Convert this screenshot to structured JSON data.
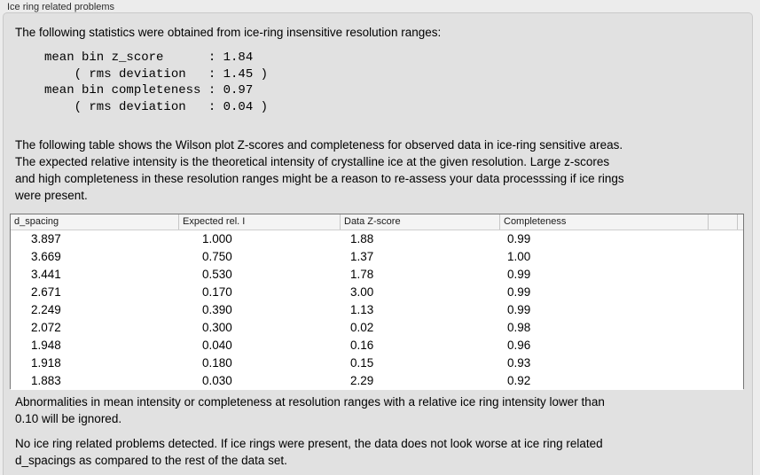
{
  "panel": {
    "title": "Ice ring related problems"
  },
  "intro_text": "The following statistics were obtained from ice-ring insensitive resolution ranges:",
  "stats_block": "mean bin z_score      : 1.84\n    ( rms deviation   : 1.45 )\nmean bin completeness : 0.97\n    ( rms deviation   : 0.04 )",
  "stats": {
    "mean_bin_z_score": "1.84",
    "z_score_rms_deviation": "1.45",
    "mean_bin_completeness": "0.97",
    "completeness_rms_deviation": "0.04"
  },
  "table_description": "The following table shows the Wilson plot Z-scores and completeness for observed data in ice-ring sensitive areas.\nThe expected relative intensity is the theoretical intensity of crystalline ice at the given resolution. Large z-scores\nand high completeness in these resolution ranges might be a reason to re-assess your data processsing if ice rings\nwere present.",
  "table": {
    "columns": [
      "d_spacing",
      "Expected rel. I",
      "Data Z-score",
      "Completeness"
    ],
    "rows": [
      [
        "3.897",
        "1.000",
        "1.88",
        "0.99"
      ],
      [
        "3.669",
        "0.750",
        "1.37",
        "1.00"
      ],
      [
        "3.441",
        "0.530",
        "1.78",
        "0.99"
      ],
      [
        "2.671",
        "0.170",
        "3.00",
        "0.99"
      ],
      [
        "2.249",
        "0.390",
        "1.13",
        "0.99"
      ],
      [
        "2.072",
        "0.300",
        "0.02",
        "0.98"
      ],
      [
        "1.948",
        "0.040",
        "0.16",
        "0.96"
      ],
      [
        "1.918",
        "0.180",
        "0.15",
        "0.93"
      ],
      [
        "1.883",
        "0.030",
        "2.29",
        "0.92"
      ]
    ]
  },
  "notes": {
    "ignore_rule": "Abnormalities in mean intensity or completeness at resolution ranges with a relative ice ring intensity lower than\n0.10 will be ignored.",
    "conclusion": "No ice ring related problems detected. If ice rings were present, the data does not look worse at ice ring related\nd_spacings as compared to the rest of the data set."
  },
  "colors": {
    "page_bg": "#ececec",
    "panel_bg": "#e1e1e1",
    "panel_border": "#c9c9c9",
    "table_border": "#767676",
    "table_header_bg": "#f4f4f4",
    "table_row_bg": "#ffffff",
    "text": "#000000"
  }
}
